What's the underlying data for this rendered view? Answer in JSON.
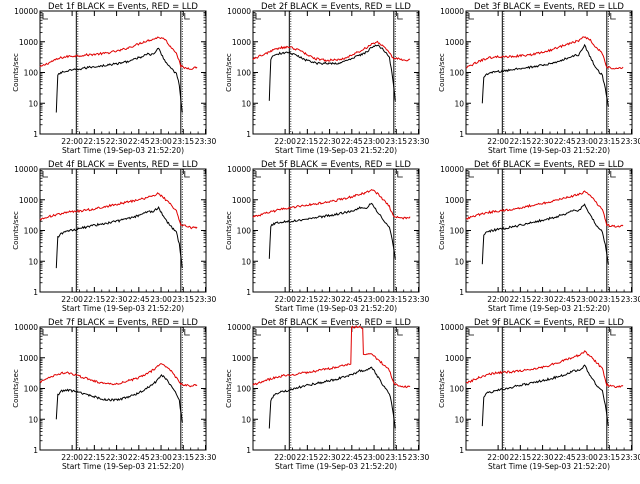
{
  "figure": {
    "ylabel": "Counts/sec",
    "xlabel": "Start Time (19-Sep-03 21:52:20)",
    "title_suffix": "BLACK = Events, RED = LLD",
    "colors": {
      "events": "#000000",
      "lld": "#e00000",
      "axes": "#000000",
      "background": "#ffffff"
    }
  },
  "chart_data": [
    {
      "id": "1f",
      "type": "line",
      "title": "Det 1f  BLACK = Events, RED = LLD",
      "xlabel": "Start Time (19-Sep-03 21:52:20)",
      "ylabel": "Counts/sec",
      "yscale": "log",
      "ylim": [
        1,
        10000
      ],
      "xlim_min": [
        -14,
        98
      ],
      "xtick_labels": [
        "22:00",
        "22:15",
        "22:30",
        "22:45",
        "23:00",
        "23:15",
        "23:30"
      ],
      "ytick_labels": [
        "1",
        "10",
        "100",
        "1000",
        "10000"
      ],
      "vlines_min": [
        10.5,
        81
      ],
      "series": [
        {
          "name": "LLD",
          "color": "#e00000",
          "x_min": [
            -14,
            -6,
            0,
            6,
            11,
            20,
            30,
            40,
            48,
            56,
            62,
            66,
            70,
            74,
            78,
            81,
            84,
            88,
            92
          ],
          "values": [
            150,
            230,
            300,
            340,
            350,
            380,
            420,
            520,
            700,
            1000,
            1200,
            1400,
            1250,
            700,
            450,
            160,
            140,
            135,
            150
          ]
        },
        {
          "name": "Events",
          "color": "#000000",
          "x_min": [
            -3,
            -2,
            0,
            6,
            11,
            20,
            30,
            40,
            48,
            54,
            58,
            62,
            66,
            70,
            74,
            78,
            80,
            82
          ],
          "values": [
            5,
            80,
            100,
            115,
            125,
            150,
            170,
            200,
            250,
            320,
            400,
            380,
            600,
            250,
            150,
            90,
            40,
            5
          ]
        }
      ]
    },
    {
      "id": "2f",
      "type": "line",
      "title": "Det 2f  BLACK = Events, RED = LLD",
      "xlabel": "Start Time (19-Sep-03 21:52:20)",
      "ylabel": "Counts/sec",
      "yscale": "log",
      "ylim": [
        1,
        10000
      ],
      "xlim_min": [
        -14,
        98
      ],
      "xtick_labels": [
        "22:00",
        "22:15",
        "22:30",
        "22:45",
        "23:00",
        "23:15",
        "23:30"
      ],
      "ytick_labels": [
        "1",
        "10",
        "100",
        "1000",
        "10000"
      ],
      "vlines_min": [
        10.5,
        81
      ],
      "series": [
        {
          "name": "LLD",
          "color": "#e00000",
          "x_min": [
            -14,
            -8,
            -2,
            4,
            10,
            16,
            22,
            28,
            36,
            44,
            50,
            56,
            62,
            66,
            70,
            74,
            78,
            81,
            84,
            88,
            92
          ],
          "values": [
            280,
            360,
            500,
            620,
            680,
            560,
            400,
            280,
            250,
            255,
            320,
            440,
            620,
            850,
            1000,
            700,
            420,
            290,
            280,
            250,
            270
          ]
        },
        {
          "name": "Events",
          "color": "#000000",
          "x_min": [
            -3,
            -2,
            0,
            4,
            10,
            16,
            22,
            28,
            36,
            44,
            50,
            56,
            62,
            66,
            70,
            74,
            78,
            80,
            82
          ],
          "values": [
            12,
            280,
            350,
            420,
            440,
            350,
            250,
            200,
            200,
            200,
            250,
            330,
            450,
            650,
            800,
            550,
            320,
            80,
            12
          ]
        }
      ]
    },
    {
      "id": "3f",
      "type": "line",
      "title": "Det 3f  BLACK = Events, RED = LLD",
      "xlabel": "Start Time (19-Sep-03 21:52:20)",
      "ylabel": "Counts/sec",
      "yscale": "log",
      "ylim": [
        1,
        10000
      ],
      "xlim_min": [
        -14,
        98
      ],
      "xtick_labels": [
        "22:00",
        "22:15",
        "22:30",
        "22:45",
        "23:00",
        "23:15",
        "23:30"
      ],
      "ytick_labels": [
        "1",
        "10",
        "100",
        "1000",
        "10000"
      ],
      "vlines_min": [
        10.5,
        81
      ],
      "series": [
        {
          "name": "LLD",
          "color": "#e00000",
          "x_min": [
            -14,
            -6,
            0,
            6,
            11,
            20,
            30,
            40,
            48,
            56,
            62,
            66,
            70,
            74,
            78,
            81,
            84,
            88,
            92
          ],
          "values": [
            140,
            220,
            290,
            330,
            320,
            340,
            380,
            480,
            650,
            900,
            1100,
            1500,
            1100,
            650,
            420,
            150,
            140,
            135,
            150
          ]
        },
        {
          "name": "Events",
          "color": "#000000",
          "x_min": [
            -3,
            -2,
            0,
            6,
            11,
            20,
            30,
            40,
            48,
            54,
            58,
            62,
            66,
            70,
            74,
            78,
            80,
            82
          ],
          "values": [
            10,
            70,
            90,
            105,
            110,
            130,
            150,
            180,
            220,
            290,
            350,
            360,
            800,
            300,
            130,
            80,
            30,
            8
          ]
        }
      ]
    },
    {
      "id": "4f",
      "type": "line",
      "title": "Det 4f  BLACK = Events, RED = LLD",
      "xlabel": "Start Time (19-Sep-03 21:52:20)",
      "ylabel": "Counts/sec",
      "yscale": "log",
      "ylim": [
        1,
        10000
      ],
      "xlim_min": [
        -14,
        98
      ],
      "xtick_labels": [
        "22:00",
        "22:15",
        "22:30",
        "22:45",
        "23:00",
        "23:15",
        "23:30"
      ],
      "ytick_labels": [
        "1",
        "10",
        "100",
        "1000",
        "10000"
      ],
      "vlines_min": [
        10.5,
        81
      ],
      "series": [
        {
          "name": "LLD",
          "color": "#e00000",
          "x_min": [
            -14,
            -6,
            0,
            6,
            11,
            20,
            30,
            40,
            48,
            56,
            62,
            66,
            70,
            74,
            78,
            81,
            84,
            88,
            92
          ],
          "values": [
            230,
            300,
            350,
            400,
            420,
            480,
            600,
            750,
            900,
            1100,
            1300,
            1600,
            1100,
            700,
            450,
            160,
            140,
            120,
            130
          ]
        },
        {
          "name": "Events",
          "color": "#000000",
          "x_min": [
            -3,
            -2,
            0,
            6,
            11,
            20,
            30,
            40,
            48,
            54,
            58,
            62,
            66,
            70,
            74,
            78,
            80,
            82
          ],
          "values": [
            6,
            60,
            80,
            100,
            110,
            140,
            170,
            210,
            260,
            330,
            400,
            420,
            550,
            250,
            140,
            90,
            35,
            6
          ]
        }
      ]
    },
    {
      "id": "5f",
      "type": "line",
      "title": "Det 5f  BLACK = Events, RED = LLD",
      "xlabel": "Start Time (19-Sep-03 21:52:20)",
      "ylabel": "Counts/sec",
      "yscale": "log",
      "ylim": [
        1,
        10000
      ],
      "xlim_min": [
        -14,
        98
      ],
      "xtick_labels": [
        "22:00",
        "22:15",
        "22:30",
        "22:45",
        "23:00",
        "23:15",
        "23:30"
      ],
      "ytick_labels": [
        "1",
        "10",
        "100",
        "1000",
        "10000"
      ],
      "vlines_min": [
        10.5,
        81
      ],
      "series": [
        {
          "name": "LLD",
          "color": "#e00000",
          "x_min": [
            -14,
            -6,
            0,
            6,
            11,
            20,
            30,
            40,
            48,
            56,
            62,
            66,
            70,
            74,
            78,
            81,
            84,
            88,
            92
          ],
          "values": [
            280,
            350,
            430,
            500,
            550,
            650,
            750,
            900,
            1100,
            1400,
            1700,
            2100,
            1600,
            1000,
            600,
            280,
            260,
            250,
            280
          ]
        },
        {
          "name": "Events",
          "color": "#000000",
          "x_min": [
            -3,
            -2,
            0,
            6,
            11,
            20,
            30,
            40,
            48,
            54,
            58,
            62,
            66,
            70,
            74,
            78,
            80,
            82
          ],
          "values": [
            12,
            140,
            170,
            190,
            200,
            230,
            270,
            320,
            380,
            450,
            550,
            500,
            800,
            400,
            220,
            130,
            50,
            12
          ]
        }
      ]
    },
    {
      "id": "6f",
      "type": "line",
      "title": "Det 6f  BLACK = Events, RED = LLD",
      "xlabel": "Start Time (19-Sep-03 21:52:20)",
      "ylabel": "Counts/sec",
      "yscale": "log",
      "ylim": [
        1,
        10000
      ],
      "xlim_min": [
        -14,
        98
      ],
      "xtick_labels": [
        "22:00",
        "22:15",
        "22:30",
        "22:45",
        "23:00",
        "23:15",
        "23:30"
      ],
      "ytick_labels": [
        "1",
        "10",
        "100",
        "1000",
        "10000"
      ],
      "vlines_min": [
        10.5,
        81
      ],
      "series": [
        {
          "name": "LLD",
          "color": "#e00000",
          "x_min": [
            -14,
            -6,
            0,
            6,
            11,
            20,
            30,
            40,
            48,
            56,
            62,
            66,
            70,
            74,
            78,
            81,
            84,
            88,
            92
          ],
          "values": [
            240,
            320,
            380,
            420,
            450,
            520,
            650,
            800,
            1000,
            1250,
            1500,
            1800,
            1300,
            800,
            500,
            150,
            140,
            130,
            140
          ]
        },
        {
          "name": "Events",
          "color": "#000000",
          "x_min": [
            -3,
            -2,
            0,
            6,
            11,
            20,
            30,
            40,
            48,
            54,
            58,
            62,
            66,
            70,
            74,
            78,
            80,
            82
          ],
          "values": [
            8,
            70,
            90,
            105,
            115,
            140,
            180,
            230,
            290,
            360,
            430,
            450,
            700,
            300,
            150,
            90,
            35,
            8
          ]
        }
      ]
    },
    {
      "id": "7f",
      "type": "line",
      "title": "Det 7f  BLACK = Events, RED = LLD",
      "xlabel": "Start Time (19-Sep-03 21:52:20)",
      "ylabel": "Counts/sec",
      "yscale": "log",
      "ylim": [
        1,
        10000
      ],
      "xlim_min": [
        -14,
        98
      ],
      "xtick_labels": [
        "22:00",
        "22:15",
        "22:30",
        "22:45",
        "23:00",
        "23:15",
        "23:30"
      ],
      "ytick_labels": [
        "1",
        "10",
        "100",
        "1000",
        "10000"
      ],
      "vlines_min": [
        10.5,
        81
      ],
      "series": [
        {
          "name": "LLD",
          "color": "#e00000",
          "x_min": [
            -14,
            -8,
            -2,
            4,
            10,
            16,
            22,
            28,
            34,
            40,
            46,
            52,
            58,
            64,
            68,
            72,
            76,
            80,
            81,
            84,
            88,
            92
          ],
          "values": [
            160,
            220,
            300,
            330,
            280,
            220,
            180,
            150,
            140,
            150,
            180,
            220,
            290,
            450,
            650,
            500,
            300,
            160,
            140,
            130,
            120,
            130
          ]
        },
        {
          "name": "Events",
          "color": "#000000",
          "x_min": [
            -3,
            -2,
            0,
            4,
            10,
            16,
            22,
            28,
            34,
            40,
            46,
            52,
            58,
            64,
            68,
            72,
            76,
            80,
            82
          ],
          "values": [
            10,
            60,
            80,
            90,
            80,
            65,
            55,
            45,
            42,
            45,
            55,
            70,
            100,
            160,
            280,
            180,
            100,
            40,
            8
          ]
        }
      ]
    },
    {
      "id": "8f",
      "type": "line",
      "title": "Det 8f  BLACK = Events, RED = LLD",
      "xlabel": "Start Time (19-Sep-03 21:52:20)",
      "ylabel": "Counts/sec",
      "yscale": "log",
      "ylim": [
        1,
        10000
      ],
      "xlim_min": [
        -14,
        98
      ],
      "xtick_labels": [
        "22:00",
        "22:15",
        "22:30",
        "22:45",
        "23:00",
        "23:15",
        "23:30"
      ],
      "ytick_labels": [
        "1",
        "10",
        "100",
        "1000",
        "10000"
      ],
      "vlines_min": [
        10.5,
        81
      ],
      "series": [
        {
          "name": "LLD",
          "color": "#e00000",
          "x_min": [
            -14,
            -6,
            0,
            6,
            11,
            20,
            30,
            40,
            48,
            52,
            52.5,
            58,
            60,
            60.5,
            66,
            70,
            74,
            78,
            81,
            84,
            88,
            92
          ],
          "values": [
            130,
            180,
            220,
            260,
            280,
            320,
            380,
            470,
            560,
            620,
            10000,
            10000,
            9000,
            1200,
            1300,
            900,
            600,
            400,
            150,
            120,
            110,
            120
          ]
        },
        {
          "name": "Events",
          "color": "#000000",
          "x_min": [
            -3,
            -2,
            0,
            6,
            11,
            20,
            30,
            40,
            48,
            54,
            58,
            62,
            66,
            70,
            74,
            78,
            80,
            82
          ],
          "values": [
            5,
            40,
            60,
            80,
            90,
            120,
            150,
            190,
            240,
            300,
            380,
            360,
            500,
            250,
            120,
            70,
            25,
            5
          ]
        }
      ]
    },
    {
      "id": "9f",
      "type": "line",
      "title": "Det 9f  BLACK = Events, RED = LLD",
      "xlabel": "Start Time (19-Sep-03 21:52:20)",
      "ylabel": "Counts/sec",
      "yscale": "log",
      "ylim": [
        1,
        10000
      ],
      "xlim_min": [
        -14,
        98
      ],
      "xtick_labels": [
        "22:00",
        "22:15",
        "22:30",
        "22:45",
        "23:00",
        "23:15",
        "23:30"
      ],
      "ytick_labels": [
        "1",
        "10",
        "100",
        "1000",
        "10000"
      ],
      "vlines_min": [
        10.5,
        81
      ],
      "series": [
        {
          "name": "LLD",
          "color": "#e00000",
          "x_min": [
            -14,
            -6,
            0,
            6,
            11,
            20,
            30,
            40,
            48,
            56,
            62,
            66,
            70,
            74,
            78,
            81,
            84,
            88,
            92
          ],
          "values": [
            150,
            220,
            280,
            320,
            330,
            360,
            420,
            520,
            700,
            950,
            1200,
            1600,
            1100,
            700,
            450,
            130,
            120,
            110,
            120
          ]
        },
        {
          "name": "Events",
          "color": "#000000",
          "x_min": [
            -3,
            -2,
            0,
            6,
            11,
            20,
            30,
            40,
            48,
            54,
            58,
            62,
            66,
            70,
            74,
            78,
            80,
            82
          ],
          "values": [
            6,
            50,
            70,
            85,
            95,
            120,
            150,
            190,
            240,
            300,
            380,
            380,
            550,
            250,
            130,
            80,
            30,
            6
          ]
        }
      ]
    }
  ]
}
